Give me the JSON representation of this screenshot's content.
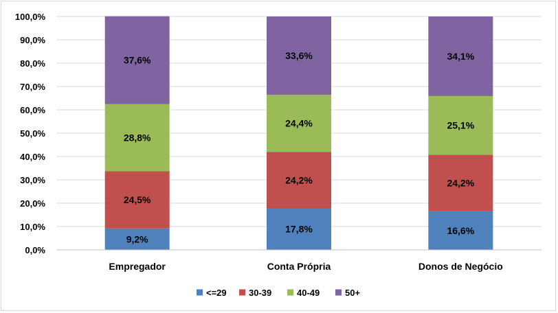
{
  "chart_data": {
    "type": "bar",
    "stacked": true,
    "categories": [
      "Empregador",
      "Conta Própria",
      "Donos de Negócio"
    ],
    "series": [
      {
        "name": "<=29",
        "color": "#4f81bd",
        "values": [
          9.2,
          17.8,
          16.6
        ],
        "labels": [
          "9,2%",
          "17,8%",
          "16,6%"
        ]
      },
      {
        "name": "30-39",
        "color": "#c0504d",
        "values": [
          24.5,
          24.2,
          24.2
        ],
        "labels": [
          "24,5%",
          "24,2%",
          "24,2%"
        ]
      },
      {
        "name": "40-49",
        "color": "#9bbb59",
        "values": [
          28.8,
          24.4,
          25.1
        ],
        "labels": [
          "28,8%",
          "24,4%",
          "25,1%"
        ]
      },
      {
        "name": "50+",
        "color": "#8064a2",
        "values": [
          37.6,
          33.6,
          34.1
        ],
        "labels": [
          "37,6%",
          "33,6%",
          "34,1%"
        ]
      }
    ],
    "ylim": [
      0,
      100
    ],
    "yticks": [
      0,
      10,
      20,
      30,
      40,
      50,
      60,
      70,
      80,
      90,
      100
    ],
    "ytick_labels": [
      "0,0%",
      "10,0%",
      "20,0%",
      "30,0%",
      "40,0%",
      "50,0%",
      "60,0%",
      "70,0%",
      "80,0%",
      "90,0%",
      "100,0%"
    ],
    "grid": true,
    "legend_position": "bottom",
    "gridline_color": "#d9d9d9",
    "axis_color": "#bfbfbf"
  }
}
